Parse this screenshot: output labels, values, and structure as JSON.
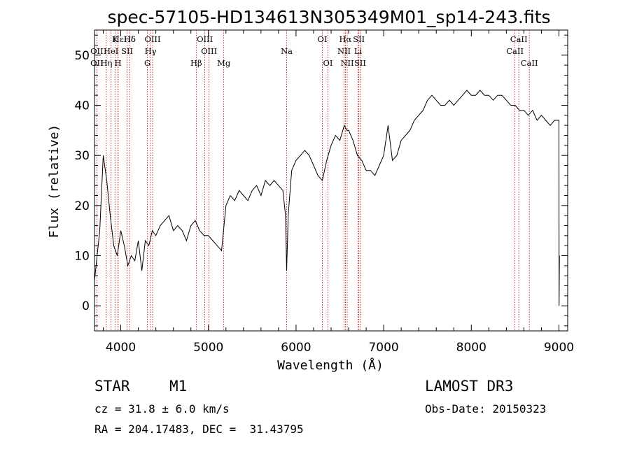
{
  "chart_data": {
    "type": "line",
    "title": "spec-57105-HD134613N305349M01_sp14-243.fits",
    "xlabel": "Wavelength (Å)",
    "ylabel": "Flux (relative)",
    "xlim": [
      3700,
      9100
    ],
    "ylim": [
      -5,
      55
    ],
    "x_ticks": [
      4000,
      5000,
      6000,
      7000,
      8000,
      9000
    ],
    "y_ticks": [
      0,
      10,
      20,
      30,
      40,
      50
    ],
    "spectral_lines": [
      {
        "name": "Hδ",
        "wavelength": 4102,
        "row": 0,
        "ref": "hd1"
      },
      {
        "name": "Hε",
        "wavelength": 3970,
        "row": 0,
        "ref": "he"
      },
      {
        "name": "K",
        "wavelength": 3934,
        "row": 0
      },
      {
        "name": "Hδ",
        "wavelength": 4102,
        "row": 0,
        "ref": "hd2"
      },
      {
        "name": "OIII",
        "wavelength": 4363,
        "row": 0
      },
      {
        "name": "OIII",
        "wavelength": 4959,
        "row": 0
      },
      {
        "name": "OI",
        "wavelength": 6300,
        "row": 0
      },
      {
        "name": "Hα",
        "wavelength": 6563,
        "row": 0
      },
      {
        "name": "SII",
        "wavelength": 6717,
        "row": 0
      },
      {
        "name": "CaII",
        "wavelength": 8542,
        "row": 0
      },
      {
        "name": "OII",
        "wavelength": 3727,
        "row": 1
      },
      {
        "name": "HeI",
        "wavelength": 3889,
        "row": 1
      },
      {
        "name": "SII",
        "wavelength": 4072,
        "row": 1
      },
      {
        "name": "Hγ",
        "wavelength": 4340,
        "row": 1
      },
      {
        "name": "OIII",
        "wavelength": 5007,
        "row": 1
      },
      {
        "name": "Na",
        "wavelength": 5893,
        "row": 1
      },
      {
        "name": "NII",
        "wavelength": 6548,
        "row": 1
      },
      {
        "name": "Li",
        "wavelength": 6708,
        "row": 1
      },
      {
        "name": "CaII",
        "wavelength": 8498,
        "row": 1
      },
      {
        "name": "OII",
        "wavelength": 3727,
        "row": 2
      },
      {
        "name": "Hη",
        "wavelength": 3835,
        "row": 2
      },
      {
        "name": "H",
        "wavelength": 3968,
        "row": 2
      },
      {
        "name": "G",
        "wavelength": 4304,
        "row": 2
      },
      {
        "name": "Hβ",
        "wavelength": 4861,
        "row": 2
      },
      {
        "name": "Mg",
        "wavelength": 5175,
        "row": 2
      },
      {
        "name": "OI",
        "wavelength": 6364,
        "row": 2
      },
      {
        "name": "NII",
        "wavelength": 6584,
        "row": 2
      },
      {
        "name": "SII",
        "wavelength": 6731,
        "row": 2
      },
      {
        "name": "CaII",
        "wavelength": 8662,
        "row": 2
      }
    ],
    "series": [
      {
        "name": "flux",
        "x": [
          3700,
          3760,
          3800,
          3840,
          3880,
          3920,
          3960,
          4000,
          4040,
          4080,
          4120,
          4160,
          4200,
          4240,
          4280,
          4320,
          4360,
          4400,
          4450,
          4500,
          4550,
          4600,
          4650,
          4700,
          4750,
          4800,
          4850,
          4900,
          4950,
          5000,
          5050,
          5100,
          5150,
          5200,
          5250,
          5300,
          5350,
          5400,
          5450,
          5500,
          5550,
          5600,
          5650,
          5700,
          5750,
          5800,
          5850,
          5880,
          5893,
          5910,
          5950,
          6000,
          6050,
          6100,
          6150,
          6200,
          6250,
          6300,
          6350,
          6400,
          6450,
          6500,
          6550,
          6580,
          6600,
          6650,
          6700,
          6750,
          6800,
          6850,
          6900,
          6950,
          7000,
          7050,
          7100,
          7150,
          7200,
          7250,
          7300,
          7350,
          7400,
          7450,
          7500,
          7550,
          7600,
          7650,
          7700,
          7750,
          7800,
          7850,
          7900,
          7950,
          8000,
          8050,
          8100,
          8150,
          8200,
          8250,
          8300,
          8350,
          8400,
          8450,
          8500,
          8550,
          8600,
          8650,
          8700,
          8750,
          8800,
          8850,
          8900,
          8950,
          9000,
          9002,
          9006
        ],
        "y": [
          5,
          15,
          30,
          25,
          18,
          12,
          10,
          15,
          12,
          8,
          10,
          9,
          13,
          7,
          13,
          12,
          15,
          14,
          16,
          17,
          18,
          15,
          16,
          15,
          13,
          16,
          17,
          15,
          14,
          14,
          13,
          12,
          11,
          20,
          22,
          21,
          23,
          22,
          21,
          23,
          24,
          22,
          25,
          24,
          25,
          24,
          23,
          18,
          7,
          18,
          27,
          29,
          30,
          31,
          30,
          28,
          26,
          25,
          29,
          32,
          34,
          33,
          36,
          35,
          35,
          33,
          30,
          29,
          27,
          27,
          26,
          28,
          30,
          36,
          29,
          30,
          33,
          34,
          35,
          37,
          38,
          39,
          41,
          42,
          41,
          40,
          40,
          41,
          40,
          41,
          42,
          43,
          42,
          42,
          43,
          42,
          42,
          41,
          42,
          42,
          41,
          40,
          40,
          39,
          39,
          38,
          39,
          37,
          38,
          37,
          36,
          37,
          37,
          0,
          10
        ]
      }
    ]
  },
  "footer": {
    "object_type": "STAR",
    "subclass": "M1",
    "survey": "LAMOST DR3",
    "redshift": "cz = 31.8 ± 6.0 km/s",
    "obs_date": "Obs-Date: 20150323",
    "coords": "RA = 204.17483, DEC =  31.43795"
  }
}
